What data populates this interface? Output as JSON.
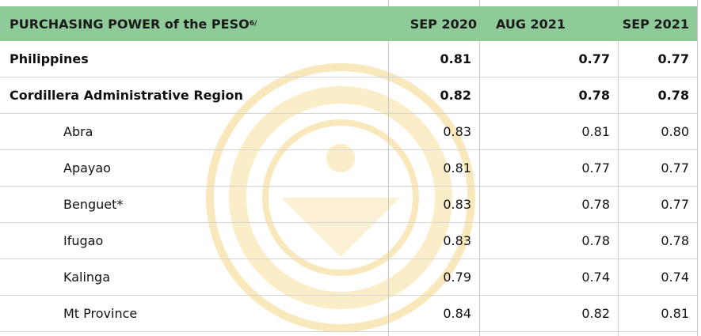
{
  "table": {
    "header": [
      "PURCHASING POWER of the PESO",
      "SEP 2020",
      "AUG 2021",
      "SEP 2021"
    ],
    "header_note": "6/",
    "rows": [
      [
        "Philippines",
        "0.81",
        "0.77",
        "0.77"
      ],
      [
        "Cordillera Administrative Region",
        "0.82",
        "0.78",
        "0.78"
      ],
      [
        "Abra",
        "0.83",
        "0.81",
        "0.80"
      ],
      [
        "Apayao",
        "0.81",
        "0.77",
        "0.77"
      ],
      [
        "Benguet*",
        "0.83",
        "0.78",
        "0.77"
      ],
      [
        "Ifugao",
        "0.83",
        "0.78",
        "0.78"
      ],
      [
        "Kalinga",
        "0.79",
        "0.74",
        "0.74"
      ],
      [
        "Mt Province",
        "0.84",
        "0.82",
        "0.81"
      ]
    ]
  }
}
